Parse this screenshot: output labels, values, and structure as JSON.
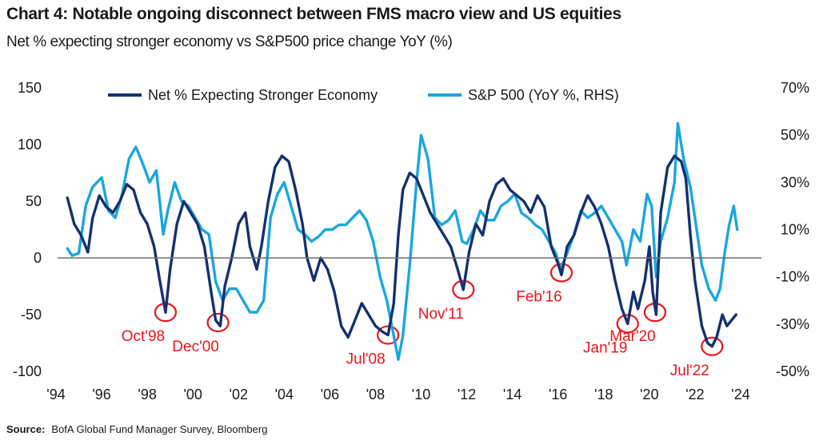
{
  "header": {
    "title": "Chart 4: Notable ongoing disconnect between FMS macro view and US equities",
    "subtitle": "Net % expecting stronger economy vs S&P500 price change YoY (%)"
  },
  "footer": {
    "source_label": "Source:",
    "source_text": "BofA Global Fund Manager Survey, Bloomberg"
  },
  "chart_data": {
    "type": "line",
    "x_range": [
      1994,
      2024
    ],
    "x_ticks": [
      {
        "value": 1994,
        "label": "'94"
      },
      {
        "value": 1996,
        "label": "'96"
      },
      {
        "value": 1998,
        "label": "'98"
      },
      {
        "value": 2000,
        "label": "'00"
      },
      {
        "value": 2002,
        "label": "'02"
      },
      {
        "value": 2004,
        "label": "'04"
      },
      {
        "value": 2006,
        "label": "'06"
      },
      {
        "value": 2008,
        "label": "'08"
      },
      {
        "value": 2010,
        "label": "'10"
      },
      {
        "value": 2012,
        "label": "'12"
      },
      {
        "value": 2014,
        "label": "'14"
      },
      {
        "value": 2016,
        "label": "'16"
      },
      {
        "value": 2018,
        "label": "'18"
      },
      {
        "value": 2020,
        "label": "'20"
      },
      {
        "value": 2022,
        "label": "'22"
      },
      {
        "value": 2024,
        "label": "'24"
      }
    ],
    "left_axis": {
      "range": [
        -100,
        150
      ],
      "ticks": [
        {
          "value": 150,
          "label": "150"
        },
        {
          "value": 100,
          "label": "100"
        },
        {
          "value": 50,
          "label": "50"
        },
        {
          "value": 0,
          "label": "0"
        },
        {
          "value": -50,
          "label": "-50"
        },
        {
          "value": -100,
          "label": "-100"
        }
      ]
    },
    "right_axis": {
      "range": [
        -50,
        70
      ],
      "ticks": [
        {
          "value": 70,
          "label": "70%"
        },
        {
          "value": 50,
          "label": "50%"
        },
        {
          "value": 30,
          "label": "30%"
        },
        {
          "value": 10,
          "label": "10%"
        },
        {
          "value": -10,
          "label": "-10%"
        },
        {
          "value": -30,
          "label": "-30%"
        },
        {
          "value": -50,
          "label": "-50%"
        }
      ]
    },
    "zero_line": true,
    "grid": false,
    "legend_position": "top",
    "series": [
      {
        "name": "Net % Expecting Stronger Economy",
        "axis": "left",
        "color": "#15306f",
        "points": [
          [
            1994.5,
            53
          ],
          [
            1994.8,
            30
          ],
          [
            1995.1,
            20
          ],
          [
            1995.4,
            5
          ],
          [
            1995.6,
            35
          ],
          [
            1995.9,
            55
          ],
          [
            1996.2,
            45
          ],
          [
            1996.5,
            40
          ],
          [
            1996.8,
            50
          ],
          [
            1997.1,
            65
          ],
          [
            1997.4,
            60
          ],
          [
            1997.7,
            40
          ],
          [
            1998.0,
            30
          ],
          [
            1998.3,
            10
          ],
          [
            1998.55,
            -20
          ],
          [
            1998.8,
            -48
          ],
          [
            1999.0,
            -10
          ],
          [
            1999.3,
            30
          ],
          [
            1999.6,
            50
          ],
          [
            1999.9,
            40
          ],
          [
            2000.2,
            30
          ],
          [
            2000.5,
            10
          ],
          [
            2000.8,
            -30
          ],
          [
            2001.0,
            -55
          ],
          [
            2001.2,
            -60
          ],
          [
            2001.4,
            -25
          ],
          [
            2001.7,
            0
          ],
          [
            2002.0,
            30
          ],
          [
            2002.3,
            40
          ],
          [
            2002.5,
            10
          ],
          [
            2002.8,
            -10
          ],
          [
            2003.0,
            10
          ],
          [
            2003.3,
            50
          ],
          [
            2003.6,
            80
          ],
          [
            2003.9,
            90
          ],
          [
            2004.2,
            85
          ],
          [
            2004.5,
            60
          ],
          [
            2004.8,
            30
          ],
          [
            2005.0,
            0
          ],
          [
            2005.3,
            -20
          ],
          [
            2005.6,
            0
          ],
          [
            2005.9,
            -10
          ],
          [
            2006.2,
            -30
          ],
          [
            2006.5,
            -60
          ],
          [
            2006.8,
            -70
          ],
          [
            2007.1,
            -55
          ],
          [
            2007.4,
            -40
          ],
          [
            2007.7,
            -50
          ],
          [
            2008.0,
            -60
          ],
          [
            2008.3,
            -65
          ],
          [
            2008.55,
            -68
          ],
          [
            2008.8,
            -40
          ],
          [
            2009.0,
            20
          ],
          [
            2009.2,
            60
          ],
          [
            2009.5,
            75
          ],
          [
            2009.8,
            70
          ],
          [
            2010.1,
            55
          ],
          [
            2010.4,
            40
          ],
          [
            2010.7,
            30
          ],
          [
            2011.0,
            20
          ],
          [
            2011.3,
            10
          ],
          [
            2011.6,
            -10
          ],
          [
            2011.85,
            -28
          ],
          [
            2012.1,
            5
          ],
          [
            2012.4,
            30
          ],
          [
            2012.7,
            20
          ],
          [
            2013.0,
            50
          ],
          [
            2013.3,
            65
          ],
          [
            2013.6,
            70
          ],
          [
            2013.9,
            60
          ],
          [
            2014.2,
            55
          ],
          [
            2014.5,
            50
          ],
          [
            2014.8,
            40
          ],
          [
            2015.1,
            55
          ],
          [
            2015.4,
            45
          ],
          [
            2015.7,
            10
          ],
          [
            2016.0,
            -5
          ],
          [
            2016.15,
            -15
          ],
          [
            2016.4,
            10
          ],
          [
            2016.7,
            20
          ],
          [
            2017.0,
            40
          ],
          [
            2017.3,
            55
          ],
          [
            2017.6,
            45
          ],
          [
            2017.9,
            30
          ],
          [
            2018.2,
            10
          ],
          [
            2018.5,
            -20
          ],
          [
            2018.8,
            -45
          ],
          [
            2019.05,
            -58
          ],
          [
            2019.3,
            -30
          ],
          [
            2019.5,
            -45
          ],
          [
            2019.8,
            -20
          ],
          [
            2020.0,
            10
          ],
          [
            2020.15,
            -30
          ],
          [
            2020.3,
            -50
          ],
          [
            2020.5,
            40
          ],
          [
            2020.8,
            80
          ],
          [
            2021.1,
            90
          ],
          [
            2021.4,
            85
          ],
          [
            2021.6,
            70
          ],
          [
            2021.8,
            20
          ],
          [
            2022.0,
            -20
          ],
          [
            2022.3,
            -60
          ],
          [
            2022.55,
            -75
          ],
          [
            2022.75,
            -78
          ],
          [
            2022.95,
            -70
          ],
          [
            2023.2,
            -50
          ],
          [
            2023.4,
            -60
          ],
          [
            2023.6,
            -55
          ],
          [
            2023.8,
            -50
          ]
        ]
      },
      {
        "name": "S&P 500 (YoY %, RHS)",
        "axis": "right",
        "color": "#1aa6e0",
        "points": [
          [
            1994.5,
            2
          ],
          [
            1994.7,
            -1
          ],
          [
            1995.0,
            0
          ],
          [
            1995.3,
            20
          ],
          [
            1995.6,
            28
          ],
          [
            1996.0,
            32
          ],
          [
            1996.3,
            18
          ],
          [
            1996.6,
            15
          ],
          [
            1996.9,
            25
          ],
          [
            1997.2,
            40
          ],
          [
            1997.5,
            45
          ],
          [
            1997.8,
            38
          ],
          [
            1998.1,
            30
          ],
          [
            1998.4,
            35
          ],
          [
            1998.7,
            8
          ],
          [
            1998.9,
            18
          ],
          [
            1999.2,
            30
          ],
          [
            1999.5,
            22
          ],
          [
            1999.8,
            20
          ],
          [
            2000.1,
            15
          ],
          [
            2000.4,
            10
          ],
          [
            2000.7,
            8
          ],
          [
            2001.0,
            -12
          ],
          [
            2001.3,
            -20
          ],
          [
            2001.6,
            -15
          ],
          [
            2001.9,
            -15
          ],
          [
            2002.2,
            -20
          ],
          [
            2002.5,
            -25
          ],
          [
            2002.8,
            -25
          ],
          [
            2003.1,
            -20
          ],
          [
            2003.4,
            15
          ],
          [
            2003.7,
            25
          ],
          [
            2004.0,
            30
          ],
          [
            2004.3,
            20
          ],
          [
            2004.6,
            10
          ],
          [
            2004.9,
            8
          ],
          [
            2005.2,
            5
          ],
          [
            2005.5,
            7
          ],
          [
            2005.8,
            10
          ],
          [
            2006.1,
            10
          ],
          [
            2006.4,
            12
          ],
          [
            2006.7,
            12
          ],
          [
            2007.0,
            15
          ],
          [
            2007.3,
            18
          ],
          [
            2007.6,
            14
          ],
          [
            2007.9,
            5
          ],
          [
            2008.2,
            -10
          ],
          [
            2008.5,
            -20
          ],
          [
            2008.8,
            -35
          ],
          [
            2009.0,
            -45
          ],
          [
            2009.2,
            -35
          ],
          [
            2009.5,
            -5
          ],
          [
            2009.8,
            30
          ],
          [
            2010.0,
            50
          ],
          [
            2010.3,
            40
          ],
          [
            2010.6,
            15
          ],
          [
            2010.9,
            12
          ],
          [
            2011.2,
            14
          ],
          [
            2011.5,
            18
          ],
          [
            2011.8,
            5
          ],
          [
            2012.0,
            4
          ],
          [
            2012.3,
            10
          ],
          [
            2012.6,
            18
          ],
          [
            2012.9,
            14
          ],
          [
            2013.2,
            14
          ],
          [
            2013.5,
            20
          ],
          [
            2013.8,
            22
          ],
          [
            2014.1,
            25
          ],
          [
            2014.4,
            17
          ],
          [
            2014.7,
            15
          ],
          [
            2015.0,
            12
          ],
          [
            2015.3,
            10
          ],
          [
            2015.6,
            5
          ],
          [
            2015.9,
            0
          ],
          [
            2016.1,
            -7
          ],
          [
            2016.4,
            0
          ],
          [
            2016.7,
            8
          ],
          [
            2017.0,
            18
          ],
          [
            2017.3,
            15
          ],
          [
            2017.6,
            17
          ],
          [
            2017.9,
            20
          ],
          [
            2018.2,
            15
          ],
          [
            2018.5,
            10
          ],
          [
            2018.8,
            5
          ],
          [
            2019.0,
            -5
          ],
          [
            2019.3,
            10
          ],
          [
            2019.6,
            5
          ],
          [
            2019.9,
            25
          ],
          [
            2020.1,
            20
          ],
          [
            2020.3,
            -10
          ],
          [
            2020.5,
            5
          ],
          [
            2020.8,
            15
          ],
          [
            2021.1,
            30
          ],
          [
            2021.25,
            55
          ],
          [
            2021.5,
            40
          ],
          [
            2021.8,
            28
          ],
          [
            2022.0,
            15
          ],
          [
            2022.3,
            -5
          ],
          [
            2022.6,
            -15
          ],
          [
            2022.9,
            -20
          ],
          [
            2023.1,
            -15
          ],
          [
            2023.3,
            0
          ],
          [
            2023.5,
            12
          ],
          [
            2023.7,
            20
          ],
          [
            2023.85,
            10
          ]
        ]
      }
    ],
    "annotations": [
      {
        "label": "Oct'98",
        "x": 1998.8,
        "y": -48
      },
      {
        "label": "Dec'00",
        "x": 2001.1,
        "y": -57
      },
      {
        "label": "Jul'08",
        "x": 2008.55,
        "y": -68
      },
      {
        "label": "Nov'11",
        "x": 2011.85,
        "y": -28
      },
      {
        "label": "Feb'16",
        "x": 2016.15,
        "y": -13
      },
      {
        "label": "Jan'19",
        "x": 2019.05,
        "y": -58
      },
      {
        "label": "Mar'20",
        "x": 2020.25,
        "y": -48
      },
      {
        "label": "Jul'22",
        "x": 2022.75,
        "y": -78
      }
    ]
  }
}
